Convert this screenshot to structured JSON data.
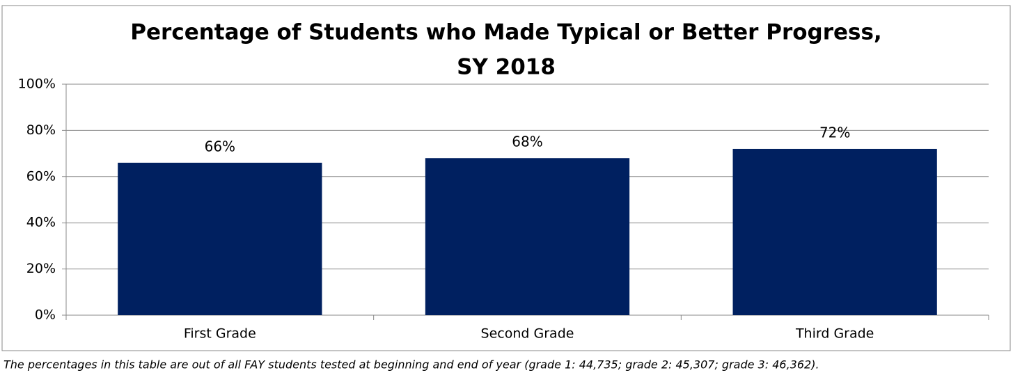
{
  "chart_data": {
    "type": "bar",
    "title": [
      "Percentage of Students who Made Typical or Better Progress,",
      "SY 2018"
    ],
    "categories": [
      "First Grade",
      "Second Grade",
      "Third Grade"
    ],
    "values": [
      66,
      68,
      72
    ],
    "value_labels": [
      "66%",
      "68%",
      "72%"
    ],
    "color": "#002060",
    "ylim": [
      0,
      100
    ],
    "yticks": [
      {
        "value": 0,
        "label": "0%"
      },
      {
        "value": 20,
        "label": "20%"
      },
      {
        "value": 40,
        "label": "40%"
      },
      {
        "value": 60,
        "label": "60%"
      },
      {
        "value": 80,
        "label": "80%"
      },
      {
        "value": 100,
        "label": "100%"
      }
    ],
    "grid": true,
    "note": "The percentages in this table are out of all FAY students tested at beginning and end of year (grade 1: 44,735; grade 2: 45,307; grade 3: 46,362)."
  }
}
